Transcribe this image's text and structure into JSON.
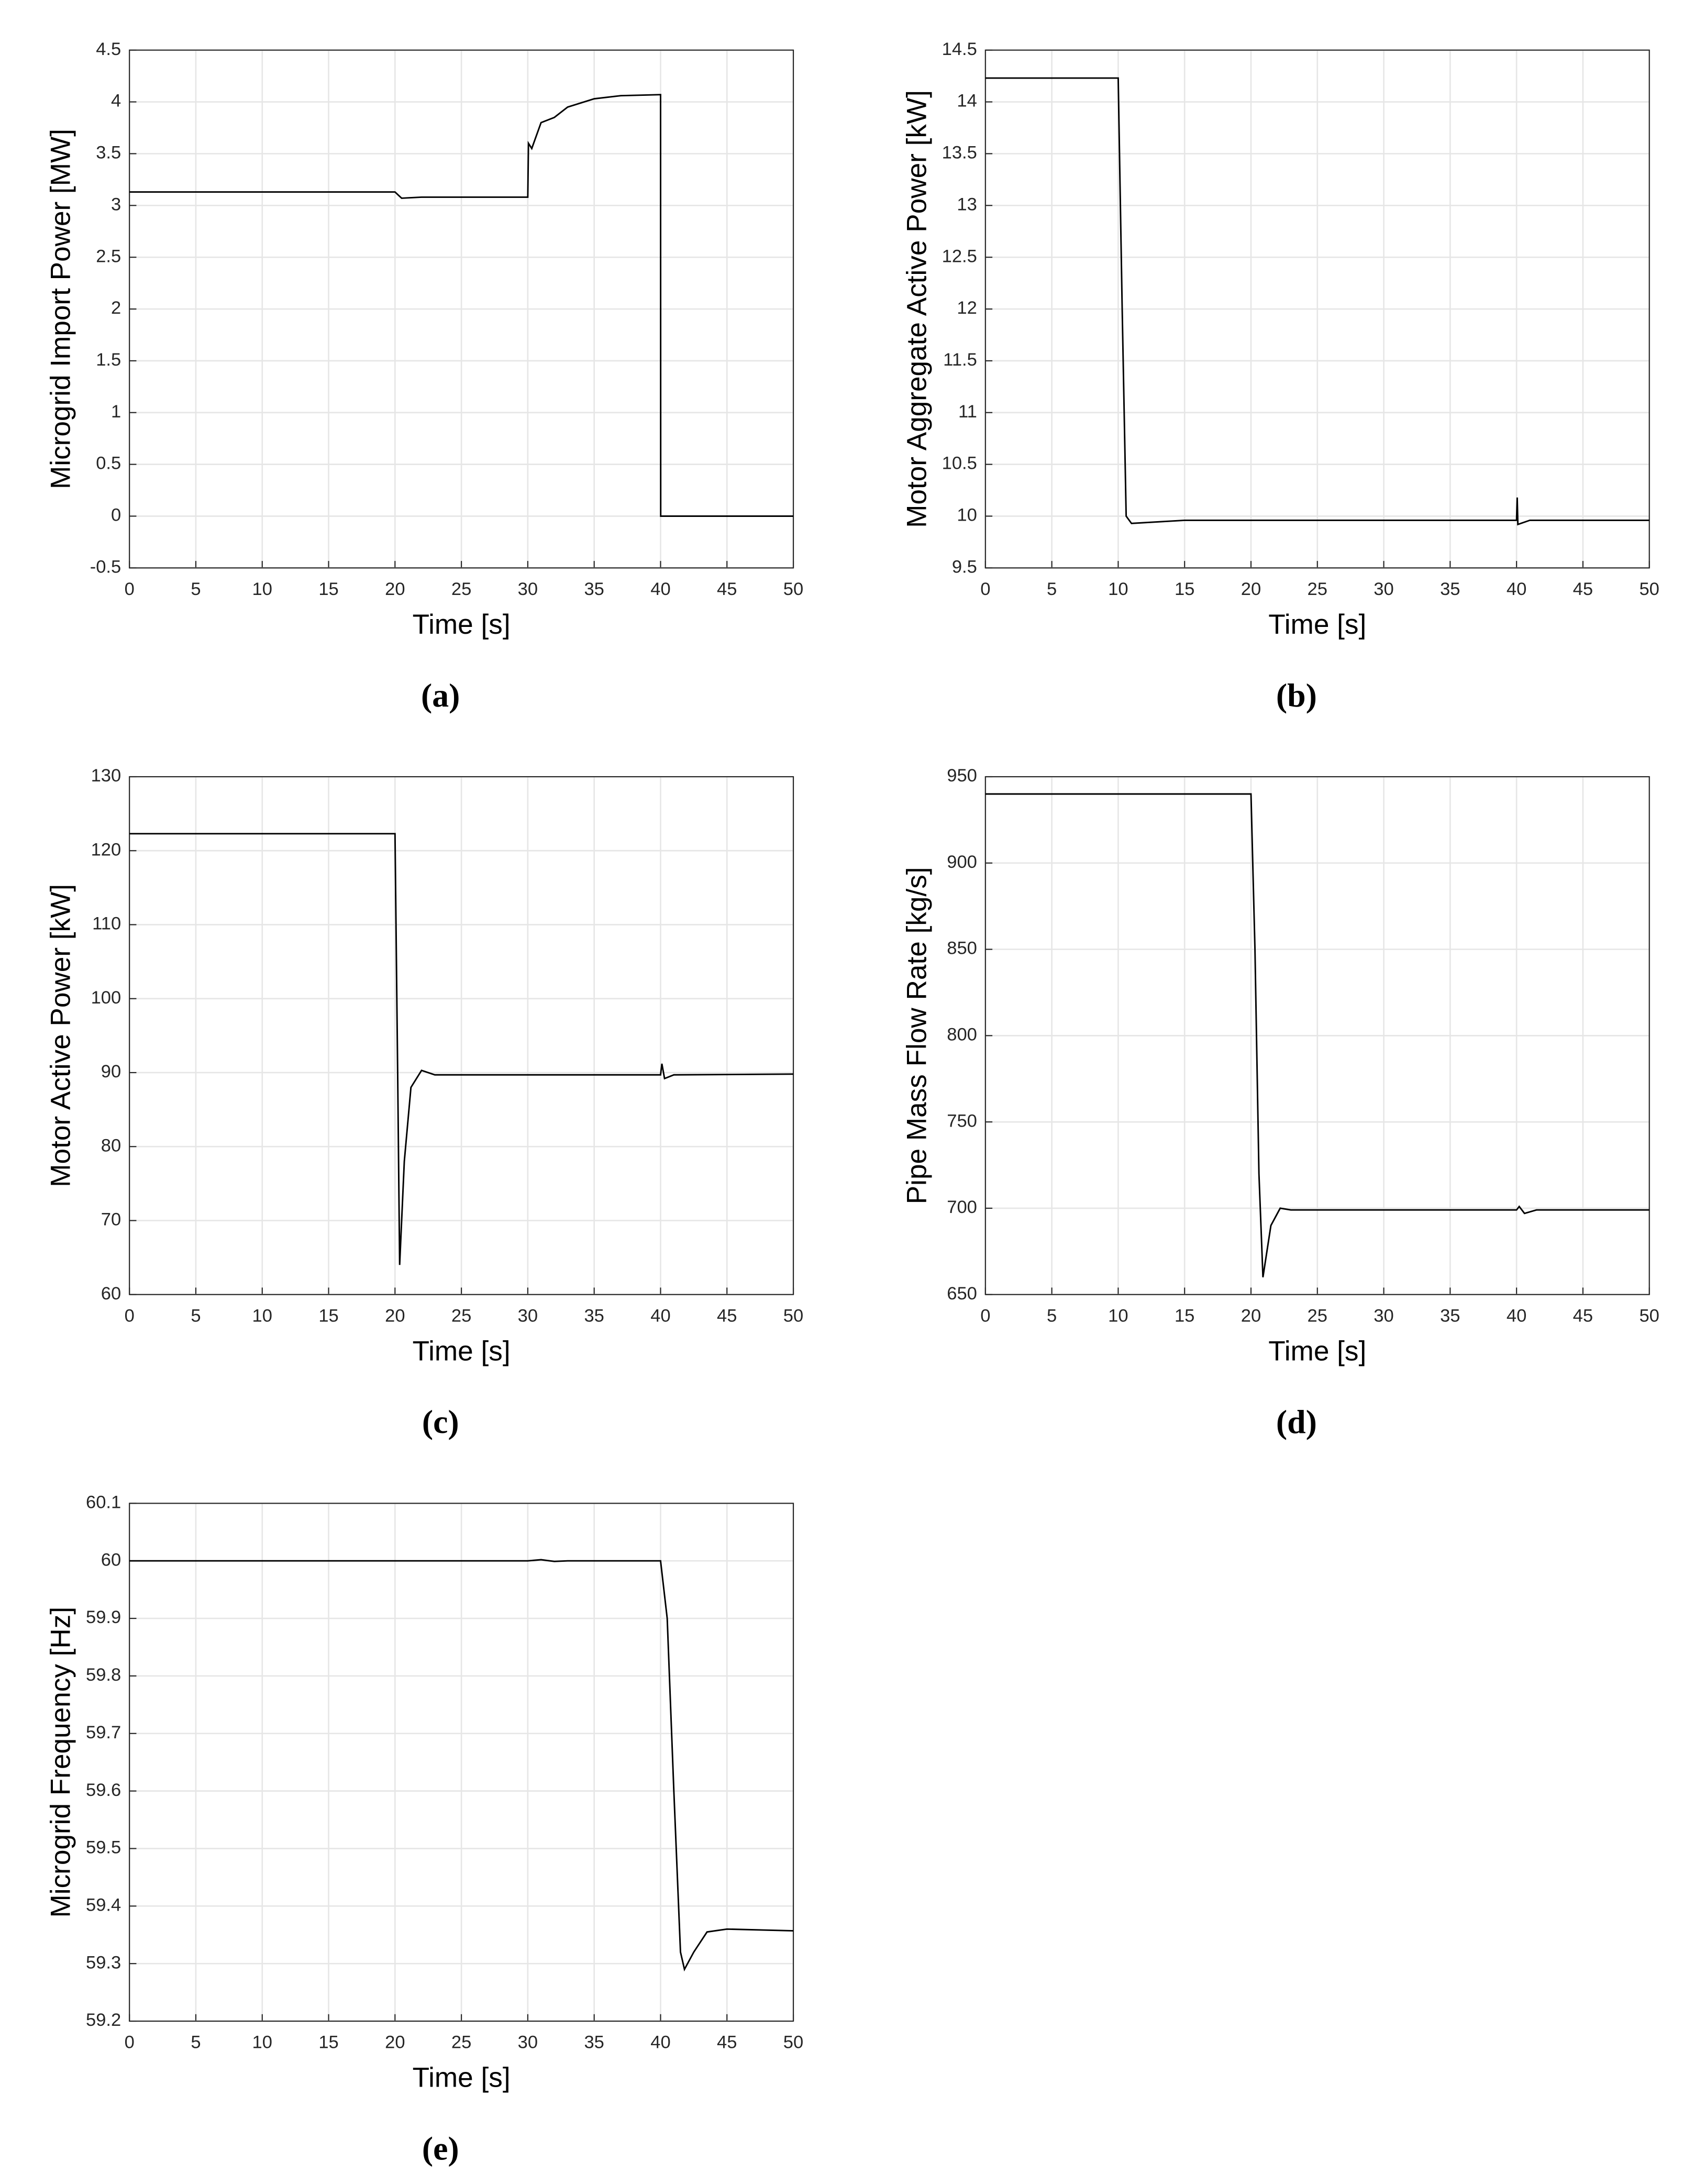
{
  "chart_data": [
    {
      "type": "line",
      "caption": "(a)",
      "xlabel": "Time [s]",
      "ylabel": "Microgrid Import Power [MW]",
      "x": [
        0,
        20,
        20.5,
        22,
        30,
        30.05,
        30.3,
        31,
        32,
        33,
        35,
        37,
        40,
        40.01,
        50
      ],
      "series": [
        {
          "color": "#000000",
          "values": [
            3.13,
            3.13,
            3.07,
            3.08,
            3.08,
            3.6,
            3.55,
            3.8,
            3.85,
            3.95,
            4.03,
            4.06,
            4.07,
            0,
            0
          ]
        }
      ],
      "xlim": [
        0,
        50
      ],
      "ylim": [
        -0.5,
        4.5
      ],
      "xticks": [
        0,
        5,
        10,
        15,
        20,
        25,
        30,
        35,
        40,
        45,
        50
      ],
      "yticks": [
        -0.5,
        0,
        0.5,
        1,
        1.5,
        2,
        2.5,
        3,
        3.5,
        4,
        4.5
      ],
      "grid": true
    },
    {
      "type": "line",
      "caption": "(b)",
      "xlabel": "Time [s]",
      "ylabel": "Motor Aggregate Active Power [kW]",
      "x": [
        0,
        10,
        10.3,
        10.6,
        11,
        15,
        40,
        40.05,
        40.1,
        41,
        50
      ],
      "series": [
        {
          "color": "#000000",
          "values": [
            14.23,
            14.23,
            12,
            10,
            9.93,
            9.96,
            9.96,
            10.18,
            9.92,
            9.96,
            9.96
          ]
        }
      ],
      "xlim": [
        0,
        50
      ],
      "ylim": [
        9.5,
        14.5
      ],
      "xticks": [
        0,
        5,
        10,
        15,
        20,
        25,
        30,
        35,
        40,
        45,
        50
      ],
      "yticks": [
        9.5,
        10,
        10.5,
        11,
        11.5,
        12,
        12.5,
        13,
        13.5,
        14,
        14.5
      ],
      "grid": true
    },
    {
      "type": "line",
      "caption": "(c)",
      "xlabel": "Time [s]",
      "ylabel": "Motor Active Power [kW]",
      "x": [
        0,
        20,
        20.2,
        20.35,
        20.7,
        21.2,
        22,
        23,
        40,
        40.1,
        40.3,
        41,
        50
      ],
      "series": [
        {
          "color": "#000000",
          "values": [
            122.3,
            122.3,
            90,
            64,
            78,
            88,
            90.3,
            89.7,
            89.7,
            91.2,
            89.2,
            89.7,
            89.8
          ]
        }
      ],
      "xlim": [
        0,
        50
      ],
      "ylim": [
        60,
        130
      ],
      "xticks": [
        0,
        5,
        10,
        15,
        20,
        25,
        30,
        35,
        40,
        45,
        50
      ],
      "yticks": [
        60,
        70,
        80,
        90,
        100,
        110,
        120,
        130
      ],
      "grid": true
    },
    {
      "type": "line",
      "caption": "(d)",
      "xlabel": "Time [s]",
      "ylabel": "Pipe Mass Flow Rate [kg/s]",
      "x": [
        0,
        20,
        20.3,
        20.6,
        20.9,
        21.5,
        22.2,
        23,
        40,
        40.2,
        40.6,
        41.5,
        50
      ],
      "series": [
        {
          "color": "#000000",
          "values": [
            940,
            940,
            850,
            720,
            660,
            690,
            700,
            699,
            699,
            701,
            697,
            699,
            699
          ]
        }
      ],
      "xlim": [
        0,
        50
      ],
      "ylim": [
        650,
        950
      ],
      "xticks": [
        0,
        5,
        10,
        15,
        20,
        25,
        30,
        35,
        40,
        45,
        50
      ],
      "yticks": [
        650,
        700,
        750,
        800,
        850,
        900,
        950
      ],
      "grid": true
    },
    {
      "type": "line",
      "caption": "(e)",
      "xlabel": "Time [s]",
      "ylabel": "Microgrid Frequency [Hz]",
      "x": [
        0,
        30,
        31,
        32,
        33,
        40,
        40.5,
        41,
        41.5,
        41.8,
        42.5,
        43.5,
        45,
        50
      ],
      "series": [
        {
          "color": "#000000",
          "values": [
            60,
            60,
            60.002,
            59.999,
            60,
            60,
            59.9,
            59.6,
            59.32,
            59.29,
            59.32,
            59.355,
            59.36,
            59.357
          ]
        }
      ],
      "xlim": [
        0,
        50
      ],
      "ylim": [
        59.2,
        60.1
      ],
      "xticks": [
        0,
        5,
        10,
        15,
        20,
        25,
        30,
        35,
        40,
        45,
        50
      ],
      "yticks": [
        59.2,
        59.3,
        59.4,
        59.5,
        59.6,
        59.7,
        59.8,
        59.9,
        60,
        60.1
      ],
      "grid": true
    }
  ]
}
